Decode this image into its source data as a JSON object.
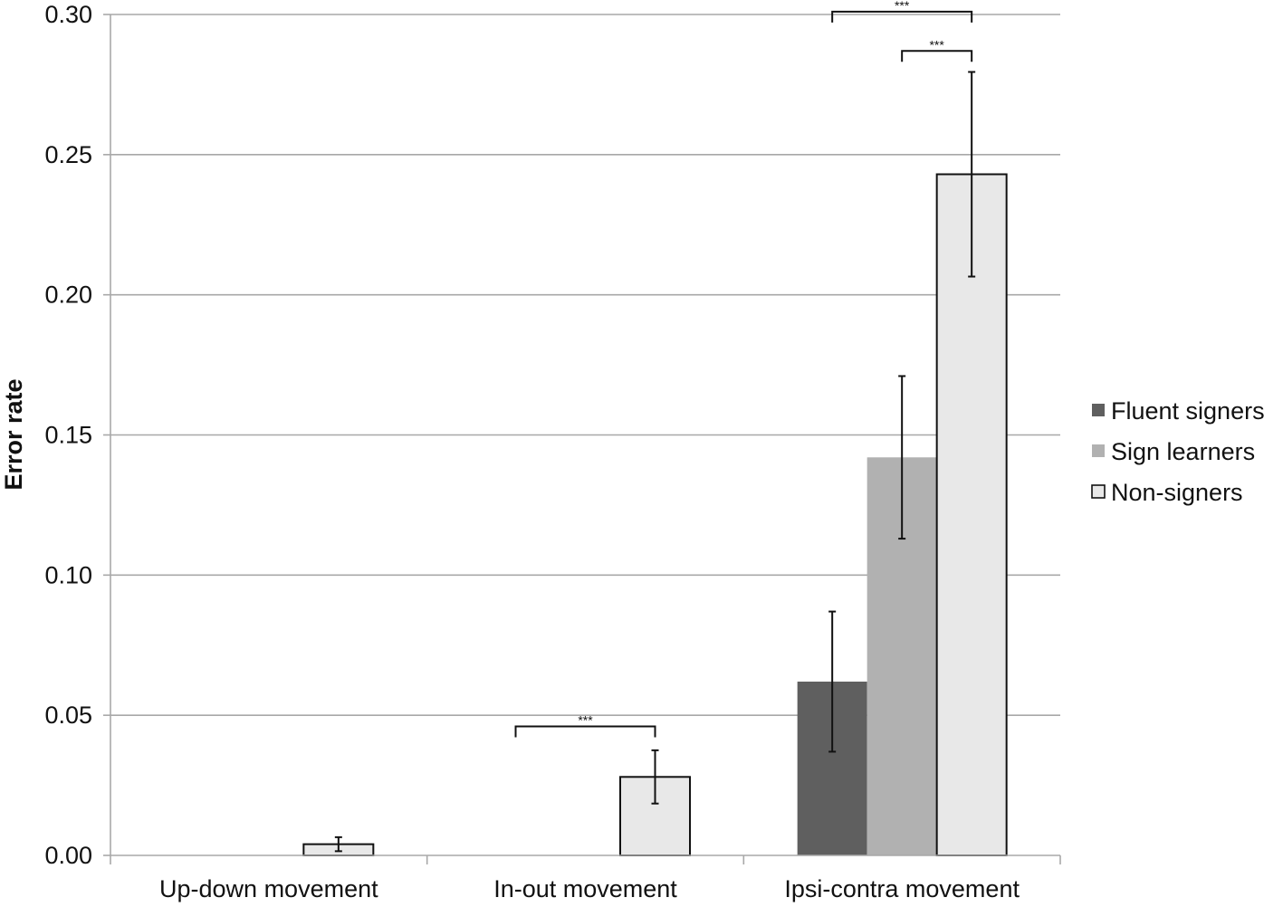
{
  "chart_data": {
    "type": "bar",
    "categories": [
      "Up-down movement",
      "In-out movement",
      "Ipsi-contra movement"
    ],
    "series": [
      {
        "name": "Fluent signers",
        "values": [
          0,
          0,
          0.062
        ],
        "errors": [
          0,
          0,
          0.025
        ],
        "color": "#5f5f5f"
      },
      {
        "name": "Sign learners",
        "values": [
          0,
          0,
          0.142
        ],
        "errors": [
          0,
          0,
          0.029
        ],
        "color": "#b1b1b1"
      },
      {
        "name": "Non-signers",
        "values": [
          0.004,
          0.028,
          0.243
        ],
        "errors": [
          0.0025,
          0.0095,
          0.0365
        ],
        "color": "#e8e8e8"
      }
    ],
    "title": "",
    "xlabel": "",
    "ylabel": "Error rate",
    "ylim": [
      0,
      0.3
    ],
    "yticks": [
      "0.00",
      "0.05",
      "0.10",
      "0.15",
      "0.20",
      "0.25",
      "0.30"
    ],
    "grid": true,
    "legend_position": "right",
    "significance": [
      {
        "category": 1,
        "from_series": 0,
        "to_series": 2,
        "level": 0.046,
        "label": "***"
      },
      {
        "category": 2,
        "from_series": 1,
        "to_series": 2,
        "level": 0.287,
        "label": "***"
      },
      {
        "category": 2,
        "from_series": 0,
        "to_series": 2,
        "level": 0.301,
        "label": "***"
      }
    ]
  }
}
